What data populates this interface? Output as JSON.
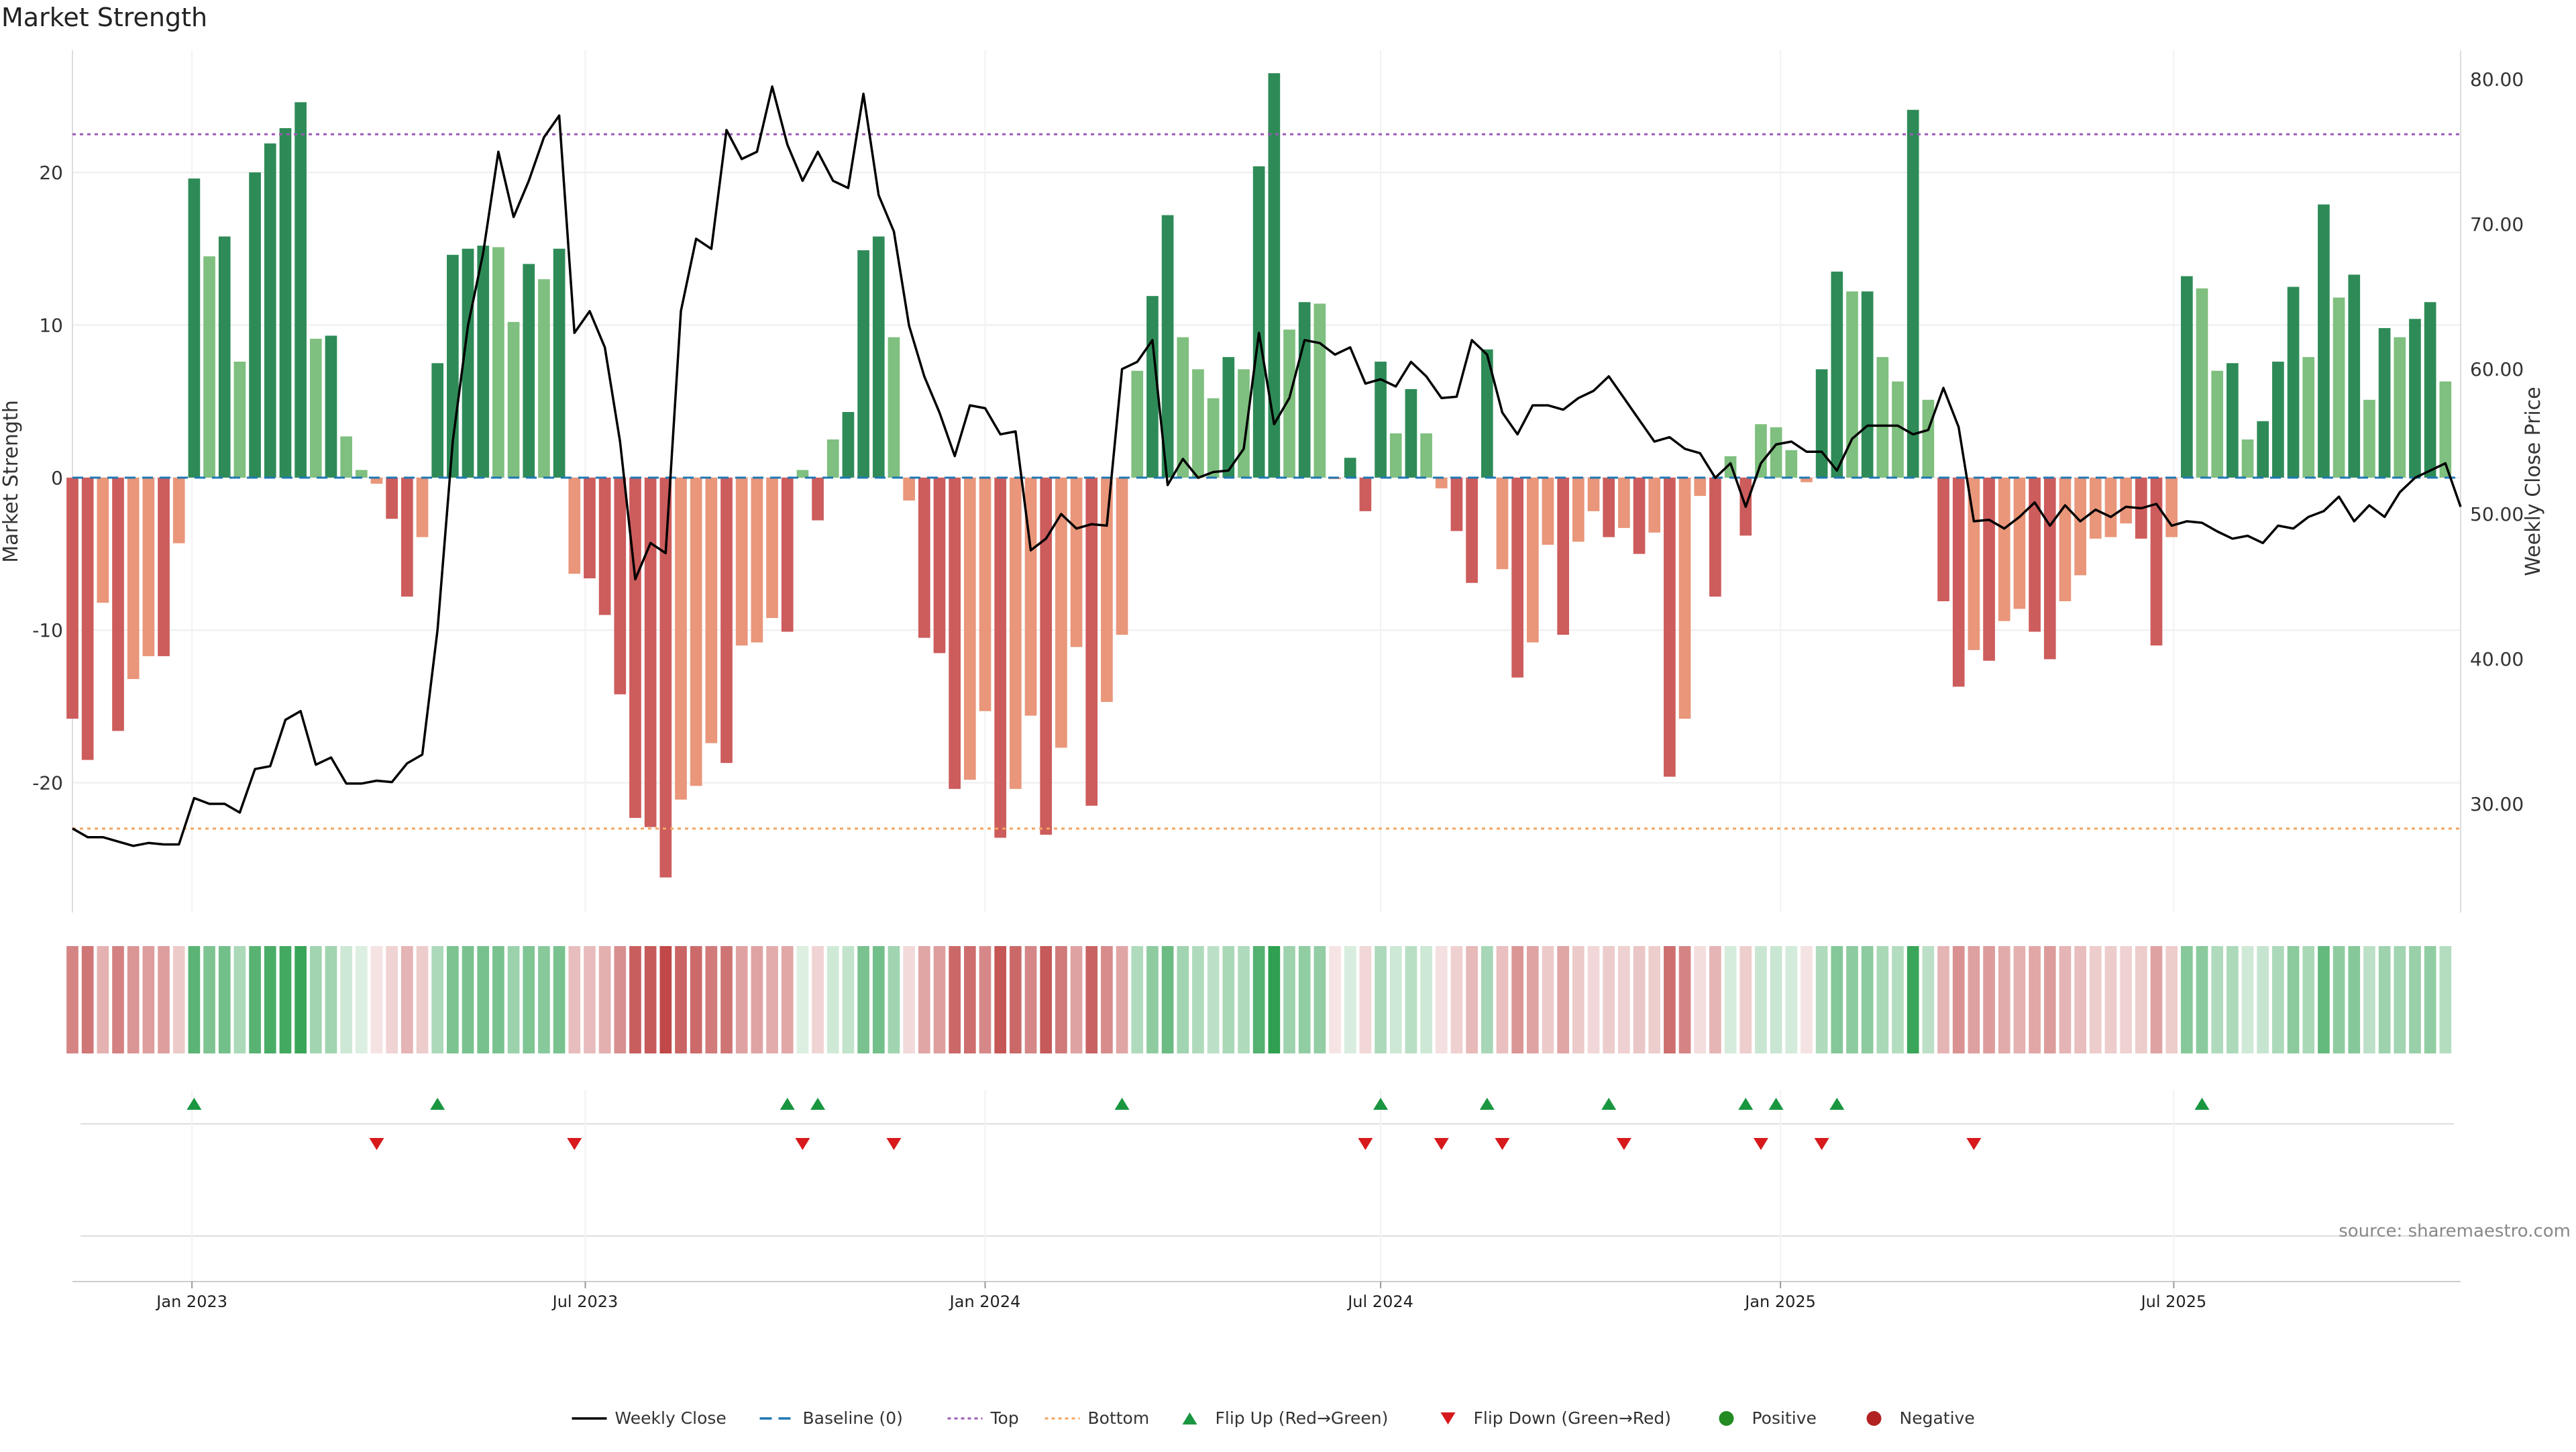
{
  "title": "Market Strength",
  "source": "source: sharemaestro.com",
  "colors": {
    "strong_pos": "#2e8b57",
    "weak_pos": "#7fbf7f",
    "strong_neg": "#cd5c5c",
    "weak_neg": "#e9967a",
    "price": "#000000",
    "baseline": "#1f77b4",
    "top": "#9b59b6",
    "bottom": "#f4a460",
    "flip_up": "#1a9641",
    "flip_down": "#d7191c",
    "positive": "#228b22",
    "negative": "#b22222"
  },
  "chart_data": {
    "type": "bar",
    "title": "Market Strength",
    "ylabel": "Market Strength",
    "y2label": "Weekly Close Price",
    "ylim": [
      -28.5,
      28
    ],
    "y2lim": [
      22.5,
      82
    ],
    "yticks": [
      -20,
      -10,
      0,
      10,
      20
    ],
    "y2ticks": [
      "30.00",
      "40.00",
      "50.00",
      "60.00",
      "70.00",
      "80.00"
    ],
    "start_date": "2022-11-07",
    "x_range_days": [
      0,
      1099
    ],
    "x_ticks": [
      {
        "label": "Jan 2023",
        "day": 55
      },
      {
        "label": "Jul 2023",
        "day": 236
      },
      {
        "label": "Jan 2024",
        "day": 420
      },
      {
        "label": "Jul 2024",
        "day": 602
      },
      {
        "label": "Jan 2025",
        "day": 786
      },
      {
        "label": "Jul 2025",
        "day": 967
      }
    ],
    "reference_lines": {
      "top": 22.5,
      "bottom": -23,
      "baseline": 0
    },
    "strength": [
      -15.8,
      -18.5,
      -8.2,
      -16.6,
      -13.2,
      -11.7,
      -11.7,
      -4.3,
      19.6,
      14.5,
      15.8,
      7.6,
      20.0,
      21.9,
      22.9,
      24.6,
      9.1,
      9.3,
      2.7,
      0.5,
      -0.4,
      -2.7,
      -7.8,
      -3.9,
      7.5,
      14.6,
      15.0,
      15.2,
      15.1,
      10.2,
      14.0,
      13.0,
      15.0,
      -6.3,
      -6.6,
      -9.0,
      -14.2,
      -22.3,
      -22.9,
      -26.2,
      -21.1,
      -20.2,
      -17.4,
      -18.7,
      -11.0,
      -10.8,
      -9.2,
      -10.1,
      0.5,
      -2.8,
      2.5,
      4.3,
      14.9,
      15.8,
      9.2,
      -1.5,
      -10.5,
      -11.5,
      -20.4,
      -19.8,
      -15.3,
      -23.6,
      -20.4,
      -15.6,
      -23.4,
      -17.7,
      -11.1,
      -21.5,
      -14.7,
      -10.3,
      7.0,
      11.9,
      17.2,
      9.2,
      7.1,
      5.2,
      7.9,
      7.1,
      20.4,
      26.5,
      9.7,
      11.5,
      11.4,
      -0.1,
      1.3,
      -2.2,
      7.6,
      2.9,
      5.8,
      2.9,
      -0.7,
      -3.5,
      -6.9,
      8.4,
      -6.0,
      -13.1,
      -10.8,
      -4.4,
      -10.3,
      -4.2,
      -2.2,
      -3.9,
      -3.3,
      -5.0,
      -3.6,
      -19.6,
      -15.8,
      -1.2,
      -7.8,
      1.4,
      -3.8,
      3.5,
      3.3,
      1.8,
      -0.3,
      7.1,
      13.5,
      12.2,
      12.2,
      7.9,
      6.3,
      24.1,
      5.1,
      -8.1,
      -13.7,
      -11.3,
      -12.0,
      -9.4,
      -8.6,
      -10.1,
      -11.9,
      -8.1,
      -6.4,
      -4.0,
      -3.9,
      -3.0,
      -4.0,
      -11.0,
      -3.9,
      13.2,
      12.4,
      7.0,
      7.5,
      2.5,
      3.7,
      7.6,
      12.5,
      7.9,
      17.9,
      11.8,
      13.3,
      5.1,
      9.8,
      9.2,
      10.4,
      11.5,
      6.3
    ],
    "weekly_close": [
      28.3,
      27.7,
      27.7,
      27.4,
      27.1,
      27.3,
      27.2,
      27.2,
      30.4,
      30.0,
      30.0,
      29.4,
      32.4,
      32.6,
      35.8,
      36.4,
      32.7,
      33.2,
      31.4,
      31.4,
      31.6,
      31.5,
      32.8,
      33.4,
      42.0,
      55.0,
      63.0,
      68.0,
      75.0,
      70.5,
      73.0,
      76.0,
      77.5,
      62.5,
      64.0,
      61.5,
      55.0,
      45.5,
      48.0,
      47.3,
      64.0,
      69.0,
      68.3,
      76.5,
      74.5,
      75.0,
      79.5,
      75.5,
      73.0,
      75.0,
      73.0,
      72.5,
      79.0,
      72.0,
      69.5,
      63.0,
      59.5,
      57.0,
      54.0,
      57.5,
      57.3,
      55.5,
      55.7,
      47.5,
      48.3,
      50.0,
      49.0,
      49.3,
      49.2,
      60.0,
      60.5,
      62.0,
      52.0,
      53.8,
      52.5,
      52.9,
      53.0,
      54.5,
      62.5,
      56.2,
      58.0,
      62.0,
      61.8,
      61.0,
      61.5,
      59.0,
      59.3,
      58.8,
      60.5,
      59.5,
      58.0,
      58.1,
      62.0,
      61.0,
      57.0,
      55.5,
      57.5,
      57.5,
      57.2,
      58.0,
      58.5,
      59.5,
      58.0,
      56.5,
      55.0,
      55.3,
      54.5,
      54.2,
      52.5,
      53.5,
      50.5,
      53.5,
      54.8,
      55.0,
      54.3,
      54.3,
      53.0,
      55.2,
      56.1,
      56.1,
      56.1,
      55.5,
      55.8,
      58.7,
      56.0,
      49.5,
      49.6,
      49.0,
      49.8,
      50.8,
      49.2,
      50.6,
      49.5,
      50.3,
      49.8,
      50.5,
      50.4,
      50.7,
      49.2,
      49.5,
      49.4,
      48.8,
      48.3,
      48.5,
      48.0,
      49.2,
      49.0,
      49.8,
      50.2,
      51.2,
      49.5,
      50.6,
      49.8,
      51.5,
      52.5,
      53.0,
      53.5,
      50.5
    ]
  },
  "flips": {
    "up": [
      8,
      24,
      47,
      49,
      69,
      86,
      93,
      101,
      110,
      112,
      116,
      140
    ],
    "down": [
      20,
      33,
      48,
      54,
      85,
      90,
      94,
      102,
      111,
      115,
      125
    ]
  },
  "legend": [
    {
      "key": "close",
      "label": "Weekly Close"
    },
    {
      "key": "baseline",
      "label": "Baseline (0)"
    },
    {
      "key": "top",
      "label": "Top"
    },
    {
      "key": "bottom",
      "label": "Bottom"
    },
    {
      "key": "flip_up",
      "label": "Flip Up (Red→Green)"
    },
    {
      "key": "flip_down",
      "label": "Flip Down (Green→Red)"
    },
    {
      "key": "positive",
      "label": "Positive"
    },
    {
      "key": "negative",
      "label": "Negative"
    }
  ]
}
